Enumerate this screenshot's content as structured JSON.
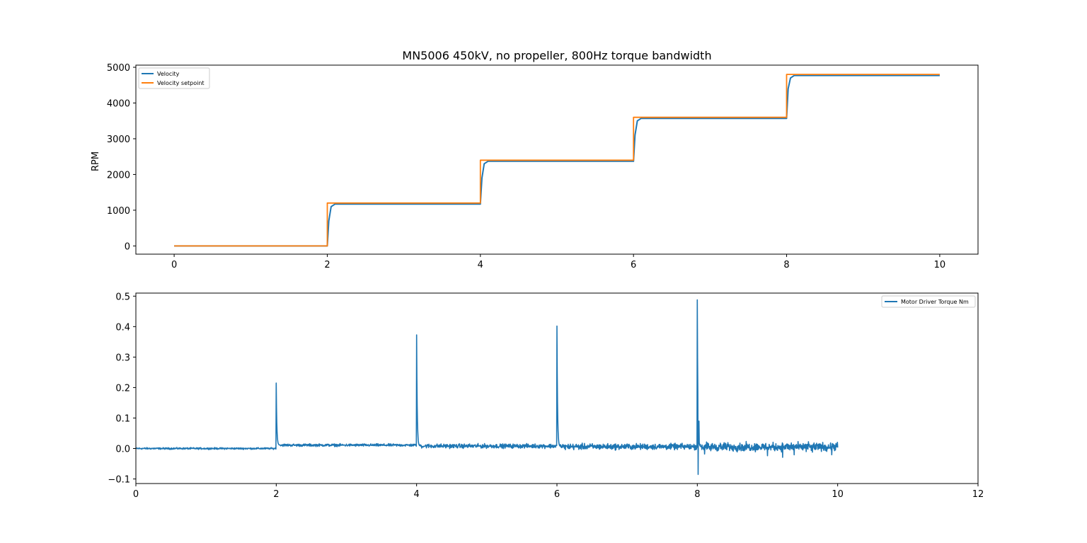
{
  "figure": {
    "title": "MN5006 450kV, no propeller, 800Hz torque bandwidth"
  },
  "chart_data": [
    {
      "type": "line",
      "title": "MN5006 450kV, no propeller, 800Hz torque bandwidth",
      "xlabel": "",
      "ylabel": "RPM",
      "xlim": [
        -0.5,
        10.5
      ],
      "ylim": [
        -230,
        5060
      ],
      "xticks": [
        0,
        2,
        4,
        6,
        8,
        10
      ],
      "yticks": [
        0,
        1000,
        2000,
        3000,
        4000,
        5000
      ],
      "grid": false,
      "legend_position": "upper left",
      "series": [
        {
          "name": "Velocity",
          "color": "#1f77b4",
          "x": [
            0,
            2,
            2.02,
            2.05,
            2.1,
            4,
            4.02,
            4.05,
            4.1,
            6,
            6.02,
            6.05,
            6.1,
            8,
            8.02,
            8.05,
            8.1,
            10
          ],
          "y": [
            0,
            0,
            700,
            1100,
            1170,
            1170,
            1900,
            2300,
            2370,
            2370,
            3100,
            3500,
            3570,
            3570,
            4400,
            4700,
            4770,
            4770
          ]
        },
        {
          "name": "Velocity setpoint",
          "color": "#ff7f0e",
          "x": [
            0,
            2,
            2,
            4,
            4,
            6,
            6,
            8,
            8,
            10
          ],
          "y": [
            0,
            0,
            1200,
            1200,
            2400,
            2400,
            3600,
            3600,
            4800,
            4800
          ]
        }
      ]
    },
    {
      "type": "line",
      "title": "",
      "xlabel": "",
      "ylabel": "",
      "xlim": [
        0,
        12
      ],
      "ylim": [
        -0.115,
        0.51
      ],
      "xticks": [
        0,
        2,
        4,
        6,
        8,
        10,
        12
      ],
      "yticks": [
        -0.1,
        0.0,
        0.1,
        0.2,
        0.3,
        0.4,
        0.5
      ],
      "ytick_labels": [
        "−0.1",
        "0.0",
        "0.1",
        "0.2",
        "0.3",
        "0.4",
        "0.5"
      ],
      "grid": false,
      "legend_position": "upper right",
      "series": [
        {
          "name": "Motor Driver Torque Nm",
          "color": "#1f77b4",
          "x_range": [
            0,
            10
          ],
          "baseline_segments": [
            {
              "x": [
                0,
                2
              ],
              "level": 0.0,
              "noise": 0.004
            },
            {
              "x": [
                2,
                4
              ],
              "level": 0.011,
              "noise": 0.006
            },
            {
              "x": [
                4,
                6
              ],
              "level": 0.008,
              "noise": 0.01
            },
            {
              "x": [
                6,
                8
              ],
              "level": 0.006,
              "noise": 0.014
            },
            {
              "x": [
                8,
                10
              ],
              "level": 0.005,
              "noise": 0.02
            }
          ],
          "spikes": [
            {
              "x": 2.0,
              "peak": 0.215
            },
            {
              "x": 4.0,
              "peak": 0.373
            },
            {
              "x": 6.0,
              "peak": 0.402
            },
            {
              "x": 8.0,
              "peak": 0.488,
              "trough": -0.085,
              "secondary": 0.09
            }
          ]
        }
      ]
    }
  ]
}
